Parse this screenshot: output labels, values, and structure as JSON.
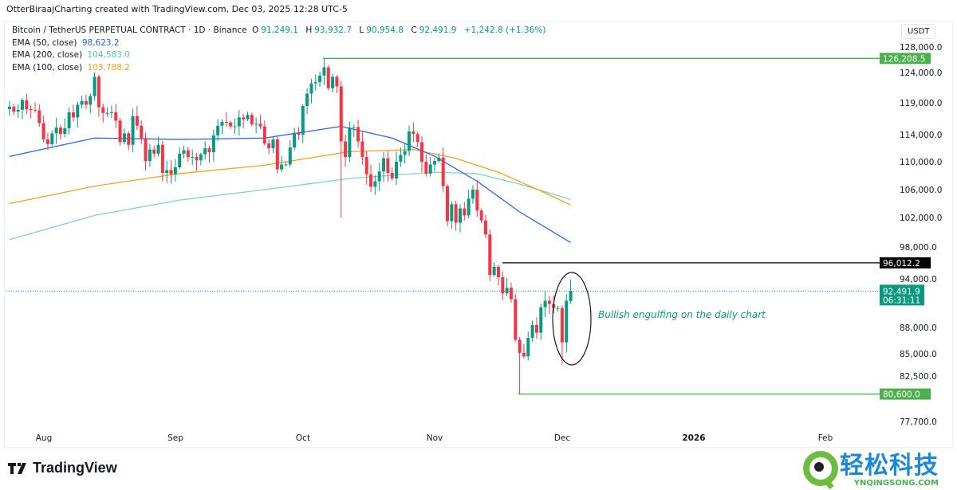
{
  "credit": "OtterBiraajCharting created with TradingView.com, Dec 03, 2025 12:28 UTC-5",
  "legend": {
    "symbol": "Bitcoin / TetherUS PERPETUAL CONTRACT · 1D · Binance",
    "o_label": "O",
    "o": "91,249.1",
    "h_label": "H",
    "h": "93,932.7",
    "l_label": "L",
    "l": "90,954.8",
    "c_label": "C",
    "c": "92,491.9",
    "change": "+1,242.8 (+1.36%)",
    "ema50_label": "EMA (50, close)",
    "ema50": "98,623.2",
    "ema200_label": "EMA (200, close)",
    "ema200": "104,583.0",
    "ema100_label": "EMA (100, close)",
    "ema100": "103,788.2"
  },
  "currency": "USDT",
  "colors": {
    "up": "#089981",
    "down": "#f23645",
    "ema50": "#2962ff",
    "ema100": "#f7a21b",
    "ema200": "#7fd3c7",
    "level": "#4caf50"
  },
  "chart_data": {
    "type": "candlestick",
    "title": "Bitcoin / TetherUS PERPETUAL CONTRACT · 1D · Binance",
    "start_date": "2025-07-24",
    "unit": "thousand USDT",
    "closes": [
      118.4,
      117.6,
      117.9,
      119.4,
      118.0,
      117.9,
      117.8,
      115.8,
      113.3,
      112.6,
      114.2,
      115.1,
      114.1,
      115.0,
      117.5,
      116.7,
      118.7,
      119.3,
      118.7,
      120.1,
      123.3,
      118.3,
      117.4,
      117.4,
      117.5,
      116.2,
      112.9,
      114.2,
      112.5,
      116.9,
      115.4,
      113.5,
      110.1,
      111.8,
      111.2,
      112.5,
      108.4,
      108.8,
      108.2,
      109.2,
      111.2,
      111.7,
      110.7,
      110.7,
      110.2,
      111.1,
      112.0,
      111.4,
      113.9,
      115.4,
      116.0,
      115.9,
      115.3,
      115.3,
      116.7,
      116.4,
      117.1,
      115.6,
      115.7,
      115.3,
      112.7,
      112.0,
      113.3,
      108.9,
      109.6,
      109.6,
      112.1,
      114.3,
      114.0,
      118.5,
      120.5,
      122.2,
      122.4,
      123.5,
      124.8,
      121.4,
      123.3,
      121.7,
      113.0,
      110.7,
      115.1,
      115.2,
      113.0,
      110.7,
      108.2,
      106.4,
      107.2,
      108.6,
      110.5,
      108.4,
      107.6,
      110.0,
      111.0,
      111.6,
      114.5,
      114.1,
      112.9,
      110.0,
      108.3,
      109.6,
      110.1,
      110.6,
      106.5,
      101.5,
      103.9,
      101.3,
      103.3,
      102.3,
      104.7,
      106.0,
      103.0,
      101.6,
      99.7,
      94.5,
      95.5,
      94.2,
      92.2,
      92.9,
      91.5,
      86.6,
      85.1,
      84.7,
      86.8,
      88.3,
      87.4,
      90.5,
      91.3,
      90.9,
      90.4,
      90.4,
      86.3,
      91.3,
      92.5
    ],
    "wick_overrides": [
      {
        "day": 74,
        "high": 126.2
      },
      {
        "day": 78,
        "low": 102.0
      },
      {
        "day": 120,
        "low": 80.6
      },
      {
        "day": 130,
        "low": 83.8
      },
      {
        "day": 132,
        "open": 91.25,
        "high": 93.93,
        "low": 90.95
      }
    ],
    "ema50": [
      [
        0,
        110.8
      ],
      [
        20,
        113.5
      ],
      [
        40,
        113.3
      ],
      [
        60,
        113.5
      ],
      [
        78,
        115.3
      ],
      [
        90,
        113.5
      ],
      [
        100,
        110.8
      ],
      [
        110,
        107.2
      ],
      [
        120,
        102.8
      ],
      [
        132,
        98.6
      ]
    ],
    "ema100": [
      [
        0,
        104.0
      ],
      [
        20,
        106.5
      ],
      [
        40,
        108.3
      ],
      [
        60,
        109.5
      ],
      [
        80,
        111.5
      ],
      [
        95,
        111.8
      ],
      [
        105,
        110.5
      ],
      [
        115,
        108.5
      ],
      [
        125,
        105.8
      ],
      [
        132,
        103.8
      ]
    ],
    "ema200": [
      [
        0,
        99.0
      ],
      [
        20,
        102.3
      ],
      [
        40,
        104.5
      ],
      [
        60,
        106.0
      ],
      [
        80,
        107.6
      ],
      [
        100,
        108.5
      ],
      [
        110,
        108.3
      ],
      [
        120,
        106.8
      ],
      [
        132,
        104.6
      ]
    ],
    "y_ticks": [
      "128,000.0",
      "124,000.0",
      "119,000.0",
      "114,000.0",
      "110,000.0",
      "106,000.0",
      "102,000.0",
      "98,000.0",
      "94,000.0",
      "88,000.0",
      "85,000.0",
      "82,500.0",
      "77,700.0"
    ],
    "y_tick_values": [
      128,
      124,
      119,
      114,
      110,
      106,
      102,
      98,
      94,
      88,
      85,
      82.5,
      77.7
    ],
    "x_ticks": [
      "Aug",
      "Sep",
      "Oct",
      "Nov",
      "Dec",
      "2026",
      "Feb"
    ],
    "levels": [
      {
        "name": "high",
        "value": 126.2085,
        "label": "126,208.5",
        "color": "#4caf50"
      },
      {
        "name": "resistance",
        "value": 96.0122,
        "label": "96,012.2",
        "color": "#000000"
      },
      {
        "name": "low",
        "value": 80.6,
        "label": "80,600.0",
        "color": "#4caf50"
      }
    ],
    "last_price": {
      "value": 92.4919,
      "label": "92,491.9",
      "countdown": "06:31:11"
    },
    "annotation": "Bullish engulfing on the daily chart"
  },
  "footer": {
    "brand": "TradingView",
    "watermark_cn": "轻松科技",
    "watermark_en": "YNQINGSONG.COM"
  }
}
